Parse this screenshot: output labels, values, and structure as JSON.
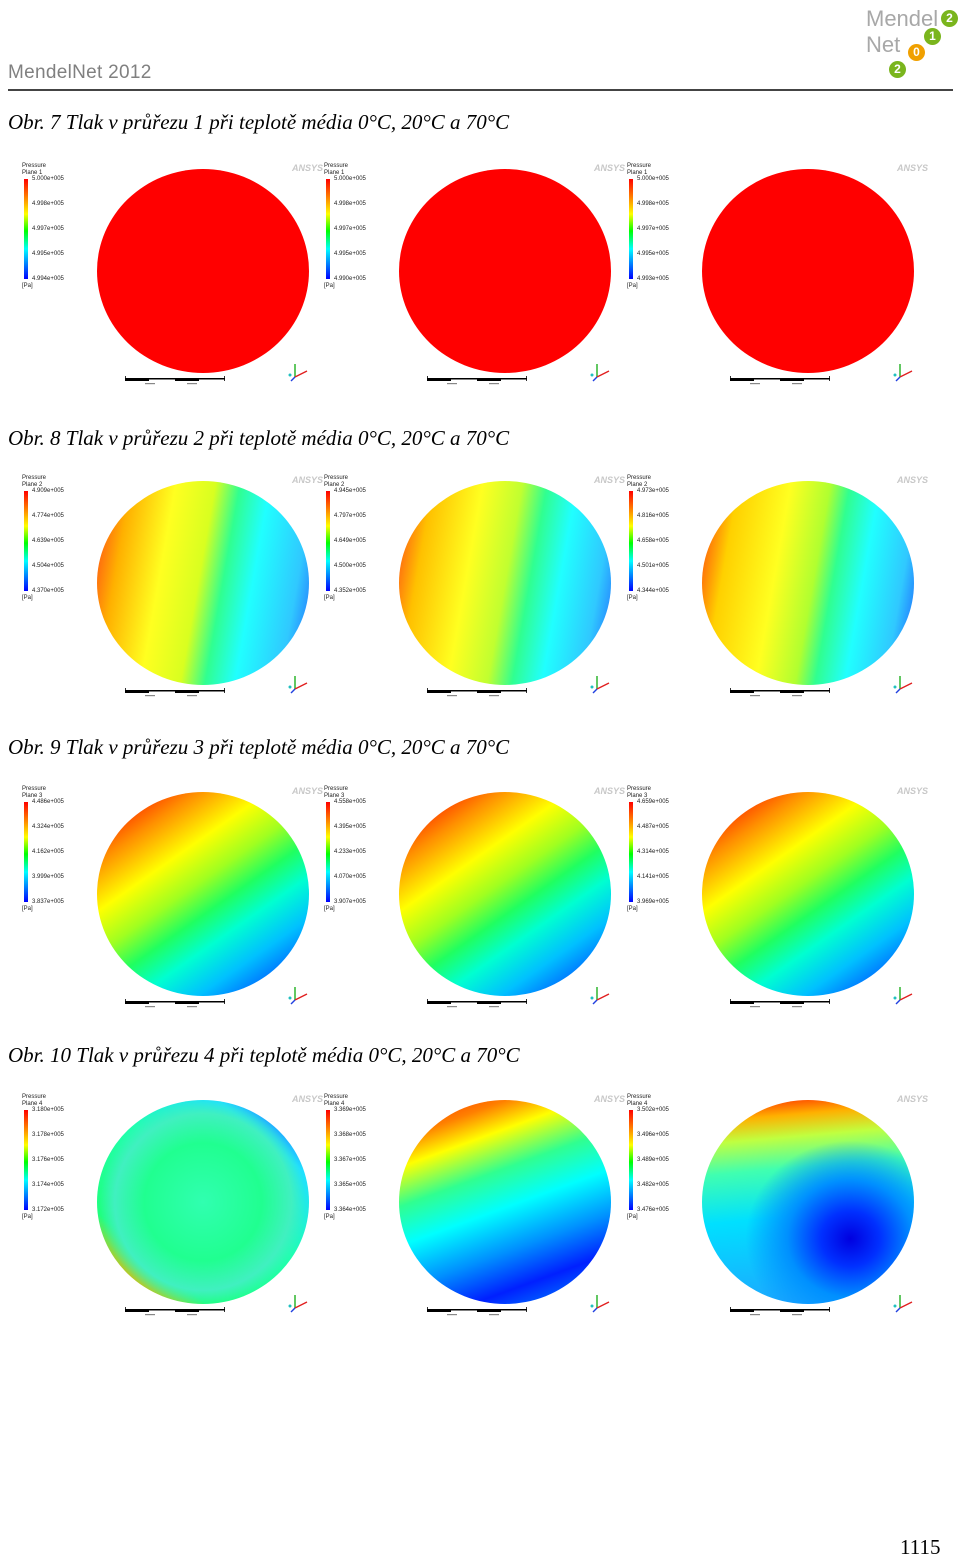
{
  "header": {
    "title": "MendelNet 2012",
    "logo_text": [
      "Mendel",
      "Net",
      "2",
      "0",
      "1",
      "2"
    ]
  },
  "figures": [
    {
      "caption": "Obr. 7 Tlak v průřezu 1 při teplotě média 0°C, 20°C a 70°C",
      "panels": [
        {
          "plane": "Plane 1",
          "values": [
            "5.000e+005",
            "4.998e+005",
            "4.997e+005",
            "4.995e+005",
            "4.994e+005"
          ]
        },
        {
          "plane": "Plane 1",
          "values": [
            "5.000e+005",
            "4.998e+005",
            "4.997e+005",
            "4.995e+005",
            "4.990e+005"
          ]
        },
        {
          "plane": "Plane 1",
          "values": [
            "5.000e+005",
            "4.998e+005",
            "4.997e+005",
            "4.995e+005",
            "4.993e+005"
          ]
        }
      ]
    },
    {
      "caption": "Obr. 8 Tlak v průřezu 2 při teplotě média 0°C, 20°C a 70°C",
      "panels": [
        {
          "plane": "Plane 2",
          "values": [
            "4.909e+005",
            "4.774e+005",
            "4.639e+005",
            "4.504e+005",
            "4.370e+005"
          ]
        },
        {
          "plane": "Plane 2",
          "values": [
            "4.945e+005",
            "4.797e+005",
            "4.649e+005",
            "4.500e+005",
            "4.352e+005"
          ]
        },
        {
          "plane": "Plane 2",
          "values": [
            "4.973e+005",
            "4.816e+005",
            "4.658e+005",
            "4.501e+005",
            "4.344e+005"
          ]
        }
      ]
    },
    {
      "caption": "Obr. 9 Tlak v průřezu 3 při teplotě média 0°C, 20°C a 70°C",
      "panels": [
        {
          "plane": "Plane 3",
          "values": [
            "4.486e+005",
            "4.324e+005",
            "4.162e+005",
            "3.999e+005",
            "3.837e+005"
          ]
        },
        {
          "plane": "Plane 3",
          "values": [
            "4.558e+005",
            "4.395e+005",
            "4.233e+005",
            "4.070e+005",
            "3.907e+005"
          ]
        },
        {
          "plane": "Plane 3",
          "values": [
            "4.659e+005",
            "4.487e+005",
            "4.314e+005",
            "4.141e+005",
            "3.969e+005"
          ]
        }
      ]
    },
    {
      "caption": "Obr. 10 Tlak v průřezu 4 při teplotě média 0°C, 20°C a 70°C",
      "panels": [
        {
          "plane": "Plane 4",
          "values": [
            "3.180e+005",
            "3.178e+005",
            "3.176e+005",
            "3.174e+005",
            "3.172e+005"
          ]
        },
        {
          "plane": "Plane 4",
          "values": [
            "3.369e+005",
            "3.368e+005",
            "3.367e+005",
            "3.365e+005",
            "3.364e+005"
          ]
        },
        {
          "plane": "Plane 4",
          "values": [
            "3.502e+005",
            "3.496e+005",
            "3.489e+005",
            "3.482e+005",
            "3.476e+005"
          ]
        }
      ]
    }
  ],
  "legend_title": "Pressure",
  "legend_unit": "[Pa]",
  "brand": "ANSYS",
  "page_number": "1115"
}
